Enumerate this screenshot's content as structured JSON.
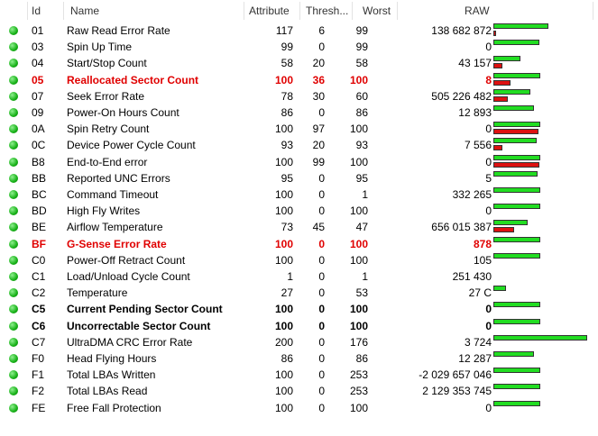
{
  "header": {
    "id": "Id",
    "name": "Name",
    "attribute": "Attribute",
    "threshold": "Thresh...",
    "worst": "Worst",
    "raw": "RAW"
  },
  "bar_colors": {
    "attribute": "#22dd22",
    "threshold": "#dd1111"
  },
  "rows": [
    {
      "id": "01",
      "name": "Raw Read Error Rate",
      "attribute": 117,
      "threshold": 6,
      "worst": 99,
      "raw": "138 682 872"
    },
    {
      "id": "03",
      "name": "Spin Up Time",
      "attribute": 99,
      "threshold": 0,
      "worst": 99,
      "raw": "0"
    },
    {
      "id": "04",
      "name": "Start/Stop Count",
      "attribute": 58,
      "threshold": 20,
      "worst": 58,
      "raw": "43 157"
    },
    {
      "id": "05",
      "name": "Reallocated Sector Count",
      "attribute": 100,
      "threshold": 36,
      "worst": 100,
      "raw": "8",
      "color": "#e00000",
      "bold": true
    },
    {
      "id": "07",
      "name": "Seek Error Rate",
      "attribute": 78,
      "threshold": 30,
      "worst": 60,
      "raw": "505 226 482"
    },
    {
      "id": "09",
      "name": "Power-On Hours Count",
      "attribute": 86,
      "threshold": 0,
      "worst": 86,
      "raw": "12 893"
    },
    {
      "id": "0A",
      "name": "Spin Retry Count",
      "attribute": 100,
      "threshold": 97,
      "worst": 100,
      "raw": "0"
    },
    {
      "id": "0C",
      "name": "Device Power Cycle Count",
      "attribute": 93,
      "threshold": 20,
      "worst": 93,
      "raw": "7 556"
    },
    {
      "id": "B8",
      "name": "End-to-End error",
      "attribute": 100,
      "threshold": 99,
      "worst": 100,
      "raw": "0"
    },
    {
      "id": "BB",
      "name": "Reported UNC Errors",
      "attribute": 95,
      "threshold": 0,
      "worst": 95,
      "raw": "5"
    },
    {
      "id": "BC",
      "name": "Command Timeout",
      "attribute": 100,
      "threshold": 0,
      "worst": 1,
      "raw": "332 265"
    },
    {
      "id": "BD",
      "name": "High Fly Writes",
      "attribute": 100,
      "threshold": 0,
      "worst": 100,
      "raw": "0"
    },
    {
      "id": "BE",
      "name": "Airflow Temperature",
      "attribute": 73,
      "threshold": 45,
      "worst": 47,
      "raw": "656 015 387"
    },
    {
      "id": "BF",
      "name": "G-Sense Error Rate",
      "attribute": 100,
      "threshold": 0,
      "worst": 100,
      "raw": "878",
      "color": "#e00000",
      "bold": true
    },
    {
      "id": "C0",
      "name": "Power-Off Retract Count",
      "attribute": 100,
      "threshold": 0,
      "worst": 100,
      "raw": "105"
    },
    {
      "id": "C1",
      "name": "Load/Unload Cycle Count",
      "attribute": 1,
      "threshold": 0,
      "worst": 1,
      "raw": "251 430"
    },
    {
      "id": "C2",
      "name": "Temperature",
      "attribute": 27,
      "threshold": 0,
      "worst": 53,
      "raw": "27 C"
    },
    {
      "id": "C5",
      "name": "Current Pending Sector Count",
      "attribute": 100,
      "threshold": 0,
      "worst": 100,
      "raw": "0",
      "bold": true
    },
    {
      "id": "C6",
      "name": "Uncorrectable Sector Count",
      "attribute": 100,
      "threshold": 0,
      "worst": 100,
      "raw": "0",
      "bold": true
    },
    {
      "id": "C7",
      "name": "UltraDMA CRC Error Rate",
      "attribute": 200,
      "threshold": 0,
      "worst": 176,
      "raw": "3 724"
    },
    {
      "id": "F0",
      "name": "Head Flying Hours",
      "attribute": 86,
      "threshold": 0,
      "worst": 86,
      "raw": "12 287"
    },
    {
      "id": "F1",
      "name": "Total LBAs Written",
      "attribute": 100,
      "threshold": 0,
      "worst": 253,
      "raw": "-2 029 657 046"
    },
    {
      "id": "F2",
      "name": "Total LBAs Read",
      "attribute": 100,
      "threshold": 0,
      "worst": 253,
      "raw": "2 129 353 745"
    },
    {
      "id": "FE",
      "name": "Free Fall Protection",
      "attribute": 100,
      "threshold": 0,
      "worst": 100,
      "raw": "0"
    }
  ]
}
